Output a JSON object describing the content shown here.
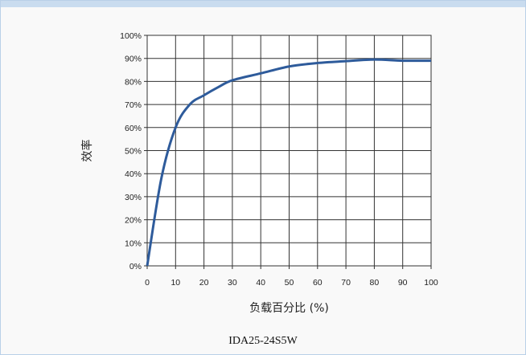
{
  "caption": "IDA25-24S5W",
  "colors": {
    "line": "#2e5b9b",
    "grid": "#333333",
    "background": "#f9f9f9"
  },
  "chart_data": {
    "type": "line",
    "xlabel": "负载百分比 (%)",
    "ylabel": "效率",
    "xlim": [
      0,
      100
    ],
    "ylim": [
      0,
      100
    ],
    "x_ticks": [
      0,
      10,
      20,
      30,
      40,
      50,
      60,
      70,
      80,
      90,
      100
    ],
    "y_ticks": [
      0,
      10,
      20,
      30,
      40,
      50,
      60,
      70,
      80,
      90,
      100
    ],
    "x_tick_labels": [
      "0",
      "10",
      "20",
      "30",
      "40",
      "50",
      "60",
      "70",
      "80",
      "90",
      "100"
    ],
    "y_tick_labels": [
      "0%",
      "10%",
      "20%",
      "30%",
      "40%",
      "50%",
      "60%",
      "70%",
      "80%",
      "90%",
      "100%"
    ],
    "grid": true,
    "series": [
      {
        "x": [
          0,
          5,
          10,
          15,
          20,
          25,
          30,
          40,
          50,
          60,
          70,
          80,
          90,
          100
        ],
        "y": [
          0,
          38,
          60,
          70,
          74,
          77.5,
          80.5,
          83.5,
          86.5,
          88,
          88.8,
          89.5,
          89,
          89
        ]
      }
    ]
  }
}
